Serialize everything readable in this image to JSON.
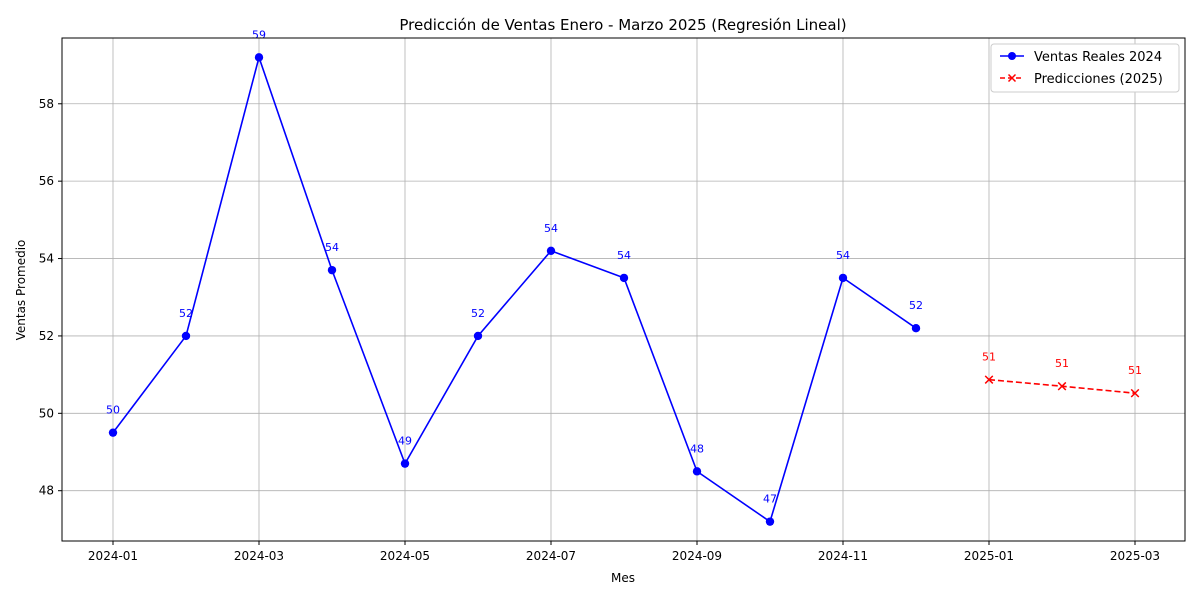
{
  "chart_data": {
    "type": "line",
    "title": "Predicción de Ventas Enero - Marzo 2025 (Regresión Lineal)",
    "xlabel": "Mes",
    "ylabel": "Ventas Promedio",
    "x_ticks": [
      "2024-01",
      "2024-03",
      "2024-05",
      "2024-07",
      "2024-09",
      "2024-11",
      "2025-01",
      "2025-03"
    ],
    "y_ticks": [
      48,
      50,
      52,
      54,
      56,
      58
    ],
    "ylim": [
      46.7,
      59.7
    ],
    "grid": true,
    "legend_position": "top-right",
    "series": [
      {
        "name": "Ventas Reales 2024",
        "color": "#0000ff",
        "line_style": "solid",
        "marker": "circle",
        "points": [
          {
            "x": "2024-01",
            "y": 49.5,
            "label": "50"
          },
          {
            "x": "2024-02",
            "y": 52.0,
            "label": "52"
          },
          {
            "x": "2024-03",
            "y": 59.2,
            "label": "59"
          },
          {
            "x": "2024-04",
            "y": 53.7,
            "label": "54"
          },
          {
            "x": "2024-05",
            "y": 48.7,
            "label": "49"
          },
          {
            "x": "2024-06",
            "y": 52.0,
            "label": "52"
          },
          {
            "x": "2024-07",
            "y": 54.2,
            "label": "54"
          },
          {
            "x": "2024-08",
            "y": 53.5,
            "label": "54"
          },
          {
            "x": "2024-09",
            "y": 48.5,
            "label": "48"
          },
          {
            "x": "2024-10",
            "y": 47.2,
            "label": "47"
          },
          {
            "x": "2024-11",
            "y": 53.5,
            "label": "54"
          },
          {
            "x": "2024-12",
            "y": 52.2,
            "label": "52"
          }
        ]
      },
      {
        "name": "Predicciones (2025)",
        "color": "#ff0000",
        "line_style": "dashed",
        "marker": "x",
        "points": [
          {
            "x": "2025-01",
            "y": 50.87,
            "label": "51"
          },
          {
            "x": "2025-02",
            "y": 50.7,
            "label": "51"
          },
          {
            "x": "2025-03",
            "y": 50.52,
            "label": "51"
          }
        ]
      }
    ]
  }
}
